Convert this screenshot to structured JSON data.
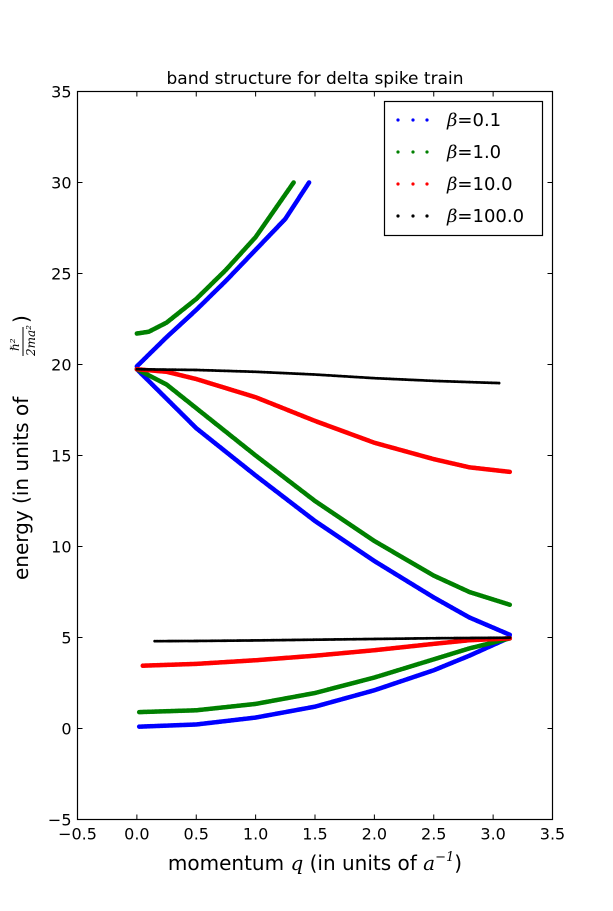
{
  "chart_data": {
    "type": "scatter",
    "title": "band structure for delta spike train",
    "xlabel": {
      "prefix": "momentum ",
      "var": "q",
      "middle": " (in units of ",
      "unit": "a",
      "exp": "−1",
      "suffix": ")"
    },
    "ylabel": {
      "prefix": "energy (in units of ",
      "num": "ℏ²",
      "den": "2ma²",
      "suffix": ")"
    },
    "xlim": [
      -0.5,
      3.5
    ],
    "ylim": [
      -5,
      35
    ],
    "xticks": [
      "−0.5",
      "0.0",
      "0.5",
      "1.0",
      "1.5",
      "2.0",
      "2.5",
      "3.0",
      "3.5"
    ],
    "xtick_values": [
      -0.5,
      0.0,
      0.5,
      1.0,
      1.5,
      2.0,
      2.5,
      3.0,
      3.5
    ],
    "yticks": [
      "−5",
      "0",
      "5",
      "10",
      "15",
      "20",
      "25",
      "30",
      "35"
    ],
    "ytick_values": [
      -5,
      0,
      5,
      10,
      15,
      20,
      25,
      30,
      35
    ],
    "grid": false,
    "legend_position": "top-right",
    "series": [
      {
        "name": "β=0.1",
        "symbol": "β",
        "label_value": "=0.1",
        "color": "#0000ff",
        "bands": [
          [
            [
              0.02,
              0.1
            ],
            [
              0.5,
              0.22
            ],
            [
              1.0,
              0.6
            ],
            [
              1.5,
              1.2
            ],
            [
              2.0,
              2.1
            ],
            [
              2.5,
              3.2
            ],
            [
              2.8,
              4.0
            ],
            [
              3.14,
              5.0
            ]
          ],
          [
            [
              0.0,
              19.74
            ],
            [
              0.5,
              16.5
            ],
            [
              1.0,
              13.9
            ],
            [
              1.5,
              11.4
            ],
            [
              2.0,
              9.2
            ],
            [
              2.5,
              7.2
            ],
            [
              2.8,
              6.1
            ],
            [
              3.14,
              5.15
            ]
          ],
          [
            [
              0.0,
              19.9
            ],
            [
              0.25,
              21.5
            ],
            [
              0.5,
              23.0
            ],
            [
              0.75,
              24.6
            ],
            [
              1.0,
              26.3
            ],
            [
              1.25,
              28.0
            ],
            [
              1.45,
              30.0
            ]
          ]
        ]
      },
      {
        "name": "β=1.0",
        "symbol": "β",
        "label_value": "=1.0",
        "color": "#008000",
        "bands": [
          [
            [
              0.02,
              0.9
            ],
            [
              0.5,
              1.0
            ],
            [
              1.0,
              1.35
            ],
            [
              1.5,
              1.95
            ],
            [
              2.0,
              2.8
            ],
            [
              2.5,
              3.8
            ],
            [
              2.8,
              4.4
            ],
            [
              3.14,
              4.95
            ]
          ],
          [
            [
              0.0,
              19.74
            ],
            [
              0.25,
              18.9
            ],
            [
              0.5,
              17.6
            ],
            [
              1.0,
              15.0
            ],
            [
              1.5,
              12.5
            ],
            [
              2.0,
              10.3
            ],
            [
              2.5,
              8.4
            ],
            [
              2.8,
              7.5
            ],
            [
              3.14,
              6.8
            ]
          ],
          [
            [
              0.0,
              21.7
            ],
            [
              0.1,
              21.8
            ],
            [
              0.25,
              22.3
            ],
            [
              0.5,
              23.6
            ],
            [
              0.75,
              25.2
            ],
            [
              1.0,
              27.0
            ],
            [
              1.32,
              30.0
            ]
          ]
        ]
      },
      {
        "name": "β=10.0",
        "symbol": "β",
        "label_value": "=10.0",
        "color": "#ff0000",
        "bands": [
          [
            [
              0.05,
              3.45
            ],
            [
              0.5,
              3.55
            ],
            [
              1.0,
              3.75
            ],
            [
              1.5,
              4.0
            ],
            [
              2.0,
              4.3
            ],
            [
              2.5,
              4.65
            ],
            [
              2.8,
              4.85
            ],
            [
              3.14,
              4.95
            ]
          ],
          [
            [
              0.0,
              19.74
            ],
            [
              0.25,
              19.6
            ],
            [
              0.5,
              19.2
            ],
            [
              1.0,
              18.2
            ],
            [
              1.5,
              16.9
            ],
            [
              2.0,
              15.7
            ],
            [
              2.5,
              14.8
            ],
            [
              2.8,
              14.35
            ],
            [
              3.14,
              14.1
            ]
          ]
        ]
      },
      {
        "name": "β=100.0",
        "symbol": "β",
        "label_value": "=100.0",
        "color": "#000000",
        "bands": [
          [
            [
              0.15,
              4.8
            ],
            [
              0.5,
              4.81
            ],
            [
              1.0,
              4.84
            ],
            [
              1.5,
              4.88
            ],
            [
              2.0,
              4.92
            ],
            [
              2.5,
              4.96
            ],
            [
              3.14,
              4.99
            ]
          ],
          [
            [
              0.0,
              19.74
            ],
            [
              0.5,
              19.7
            ],
            [
              1.0,
              19.6
            ],
            [
              1.5,
              19.45
            ],
            [
              2.0,
              19.25
            ],
            [
              2.5,
              19.1
            ],
            [
              3.05,
              18.98
            ]
          ]
        ]
      }
    ]
  }
}
